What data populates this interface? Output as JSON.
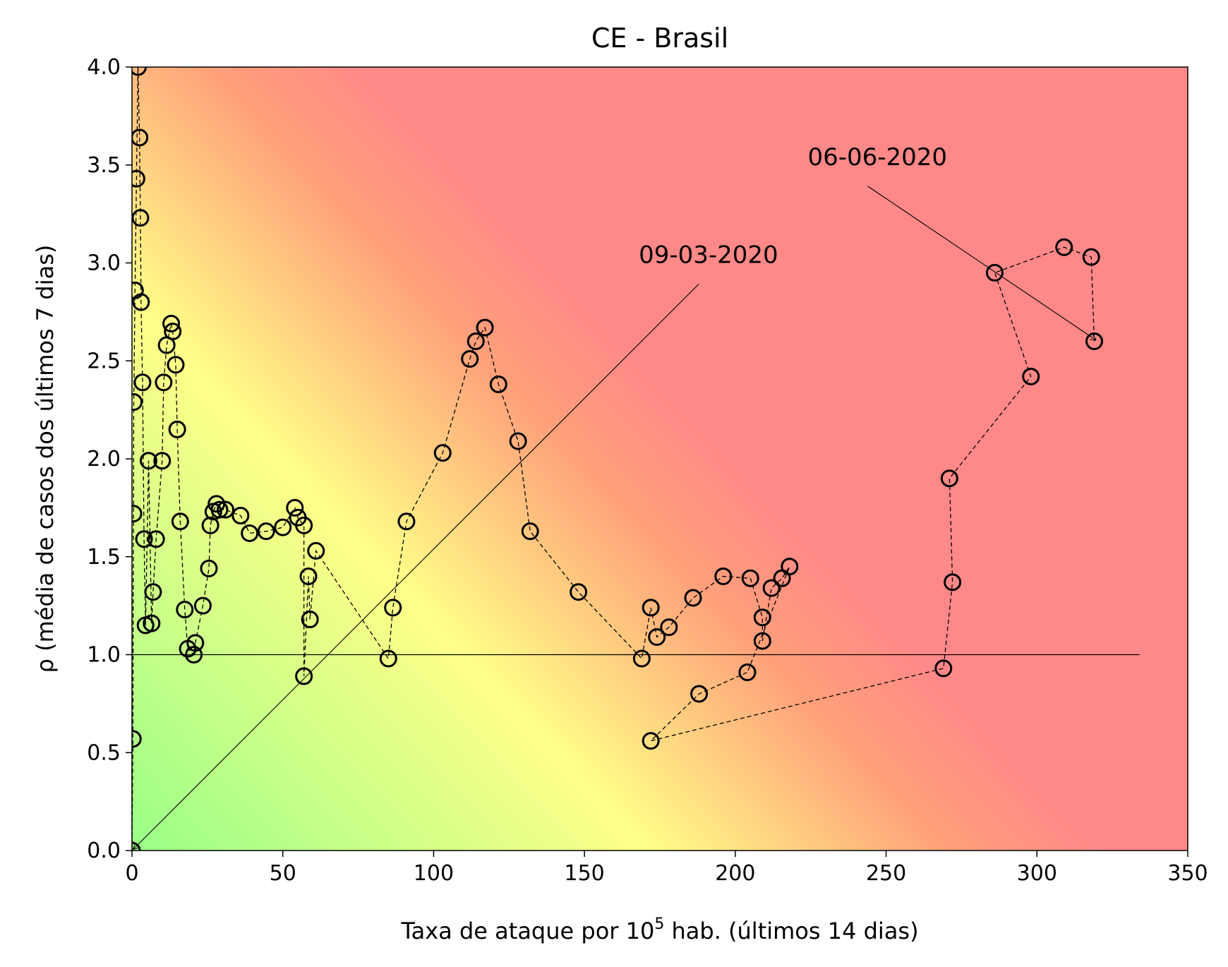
{
  "chart_data": {
    "type": "scatter",
    "title": "CE - Brasil",
    "xlabel": {
      "prefix": "Taxa de ataque por 10",
      "sup": "5",
      "suffix": " hab. (últimos 14 dias)"
    },
    "ylabel": "ρ (média de casos dos últimos 7 dias)",
    "xlim": [
      0,
      350
    ],
    "ylim": [
      0,
      4
    ],
    "xticks": [
      0,
      50,
      100,
      150,
      200,
      250,
      300,
      350
    ],
    "yticks": [
      0.0,
      0.5,
      1.0,
      1.5,
      2.0,
      2.5,
      3.0,
      3.5,
      4.0
    ],
    "xtick_labels": [
      "0",
      "50",
      "100",
      "150",
      "200",
      "250",
      "300",
      "350"
    ],
    "ytick_labels": [
      "0.0",
      "0.5",
      "1.0",
      "1.5",
      "2.0",
      "2.5",
      "3.0",
      "3.5",
      "4.0"
    ],
    "grid": false,
    "background": {
      "type": "gradient",
      "colors": [
        "#99ff88",
        "#ffff88",
        "#ff8888"
      ]
    },
    "reference_line": {
      "y": 1.0,
      "x_range": [
        0,
        334
      ]
    },
    "series": [
      {
        "marker": "circle-open",
        "line": "dashed",
        "x": [
          0,
          0.3,
          0.5,
          0.6,
          1.0,
          1.5,
          2.0,
          2.5,
          2.8,
          3.0,
          3.5,
          4.0,
          4.5,
          5.5,
          6.5,
          7.0,
          8.0,
          10.0,
          10.5,
          11.5,
          13.0,
          13.5,
          14.5,
          15.0,
          16.0,
          17.5,
          18.5,
          20.5,
          21.0,
          23.5,
          25.5,
          26.0,
          27.0,
          28.0,
          29.0,
          31.0,
          36.0,
          39.0,
          44.5,
          50.0,
          54.0,
          55.0,
          57.0,
          57.0,
          58.5,
          59.0,
          61.0,
          85.0,
          86.5,
          91.0,
          103.0,
          112.0,
          114.0,
          117.0,
          121.5,
          128.0,
          132.0,
          148.0,
          169.0,
          172.0,
          174.0,
          178.0,
          186.0,
          196.0,
          205.0,
          209.0,
          209.0,
          212.0,
          215.5,
          218.0,
          204.0,
          188.0,
          172.0,
          269.0,
          272.0,
          271.0,
          298.0,
          286.0,
          309.0,
          318.0,
          319.0
        ],
        "y": [
          0.0,
          0.57,
          1.72,
          2.29,
          2.86,
          3.43,
          4.0,
          3.64,
          3.23,
          2.8,
          2.39,
          1.59,
          1.15,
          1.99,
          1.16,
          1.32,
          1.59,
          1.99,
          2.39,
          2.58,
          2.69,
          2.65,
          2.48,
          2.15,
          1.68,
          1.23,
          1.03,
          1.0,
          1.06,
          1.25,
          1.44,
          1.66,
          1.73,
          1.77,
          1.74,
          1.74,
          1.71,
          1.62,
          1.63,
          1.65,
          1.75,
          1.7,
          1.66,
          0.89,
          1.4,
          1.18,
          1.53,
          0.98,
          1.24,
          1.68,
          2.03,
          2.51,
          2.6,
          2.67,
          2.38,
          2.09,
          1.63,
          1.32,
          0.98,
          1.24,
          1.09,
          1.14,
          1.29,
          1.4,
          1.39,
          1.19,
          1.07,
          1.34,
          1.39,
          1.45,
          0.91,
          0.8,
          0.56,
          0.93,
          1.37,
          1.9,
          2.42,
          2.95,
          3.08,
          3.03,
          2.6
        ]
      }
    ],
    "annotations": [
      {
        "text": "09-03-2020",
        "point": [
          0,
          0.0
        ],
        "text_pos": [
          168,
          3.0
        ]
      },
      {
        "text": "06-06-2020",
        "point": [
          319,
          2.6
        ],
        "text_pos": [
          224,
          3.5
        ]
      }
    ]
  }
}
